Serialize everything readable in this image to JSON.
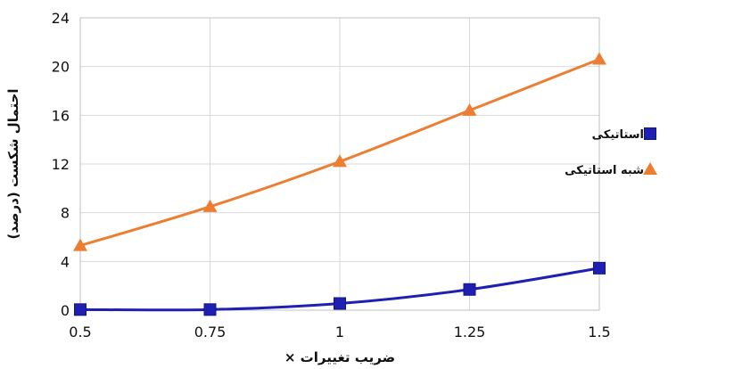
{
  "chart_data": {
    "type": "line",
    "x": [
      0.5,
      0.75,
      1,
      1.25,
      1.5
    ],
    "x_tick_labels": [
      "0.5",
      "0.75",
      "1",
      "1.25",
      "1.5"
    ],
    "y_tick_labels": [
      "0",
      "4",
      "8",
      "12",
      "16",
      "20",
      "24"
    ],
    "xlim": [
      0.5,
      1.5
    ],
    "ylim": [
      0,
      24
    ],
    "xlabel": "ضریب تغییرات ×",
    "ylabel": "احتمال شکست (درصد)",
    "grid": true,
    "legend_position": "right",
    "series": [
      {
        "name": "استاتیکی",
        "values": [
          0.05,
          0.05,
          0.55,
          1.7,
          3.45
        ],
        "color": "#1f1fb4",
        "marker": "square"
      },
      {
        "name": "شبه استاتیکی",
        "values": [
          5.3,
          8.5,
          12.2,
          16.4,
          20.6
        ],
        "color": "#ed7d31",
        "marker": "triangle"
      }
    ]
  }
}
